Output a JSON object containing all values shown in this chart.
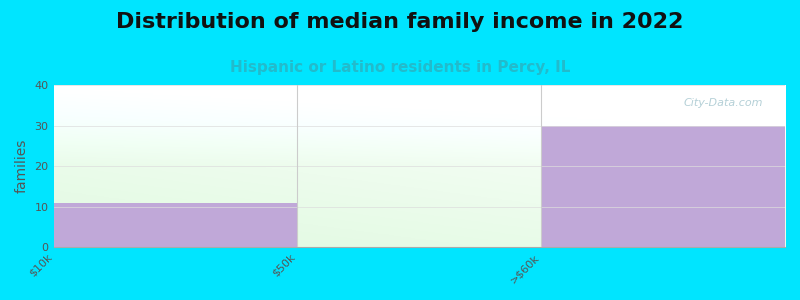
{
  "title": "Distribution of median family income in 2022",
  "subtitle": "Hispanic or Latino residents in Percy, IL",
  "categories": [
    "$10k",
    "$50k",
    ">$60k"
  ],
  "values": [
    11,
    0,
    30
  ],
  "bar_colors": [
    "#c0a8d8",
    "#c0a8d8",
    "#c0a8d8"
  ],
  "bg_color": "#00e5ff",
  "ylabel": "families",
  "ylim": [
    0,
    40
  ],
  "yticks": [
    0,
    10,
    20,
    30,
    40
  ],
  "title_fontsize": 16,
  "subtitle_fontsize": 11,
  "ylabel_fontsize": 10,
  "tick_fontsize": 8,
  "watermark": "City-Data.com",
  "watermark_color": "#a8c8d0",
  "grid_color": "#dddddd",
  "subtitle_color": "#22bbcc"
}
